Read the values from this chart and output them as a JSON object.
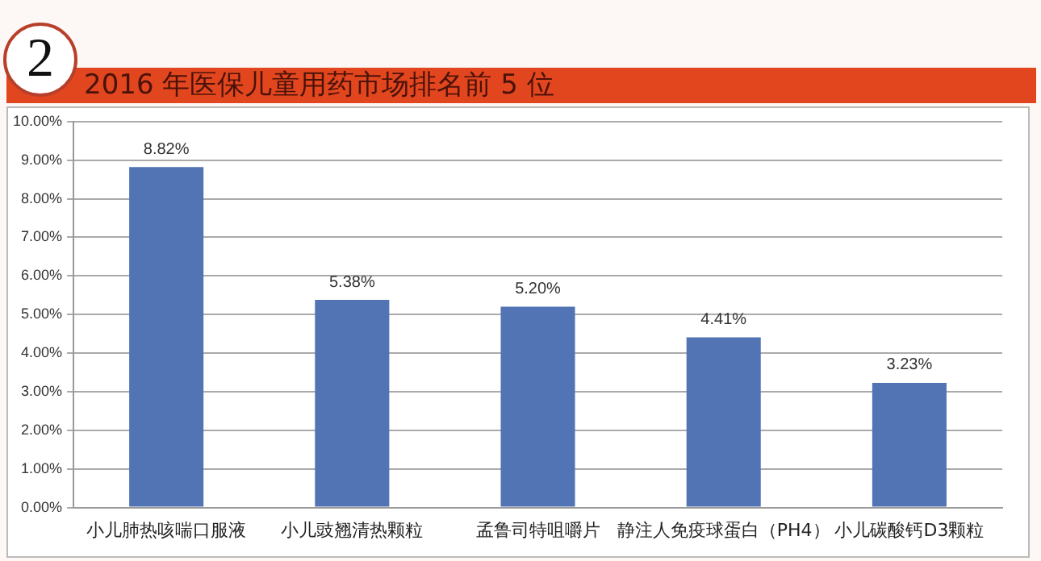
{
  "chart_data": {
    "type": "bar",
    "title": "2016 年医保儿童用药市场排名前 5 位",
    "annotations": [
      "2"
    ],
    "categories": [
      "小儿肺热咳喘口服液",
      "小儿豉翘清热颗粒",
      "孟鲁司特咀嚼片",
      "静注人免疫球蛋白（PH4）",
      "小儿碳酸钙D3颗粒"
    ],
    "values": [
      8.82,
      5.38,
      5.2,
      4.41,
      3.23
    ],
    "value_labels": [
      "8.82%",
      "5.38%",
      "5.20%",
      "4.41%",
      "3.23%"
    ],
    "color": "#5274b4",
    "ylim": [
      0,
      10
    ],
    "yticks": [
      {
        "value": 0,
        "label": "0.00%"
      },
      {
        "value": 1,
        "label": "1.00%"
      },
      {
        "value": 2,
        "label": "2.00%"
      },
      {
        "value": 3,
        "label": "3.00%"
      },
      {
        "value": 4,
        "label": "4.00%"
      },
      {
        "value": 5,
        "label": "5.00%"
      },
      {
        "value": 6,
        "label": "6.00%"
      },
      {
        "value": 7,
        "label": "7.00%"
      },
      {
        "value": 8,
        "label": "8.00%"
      },
      {
        "value": 9,
        "label": "9.00%"
      },
      {
        "value": 10,
        "label": "10.00%"
      }
    ],
    "grid": "y",
    "legend": false
  }
}
